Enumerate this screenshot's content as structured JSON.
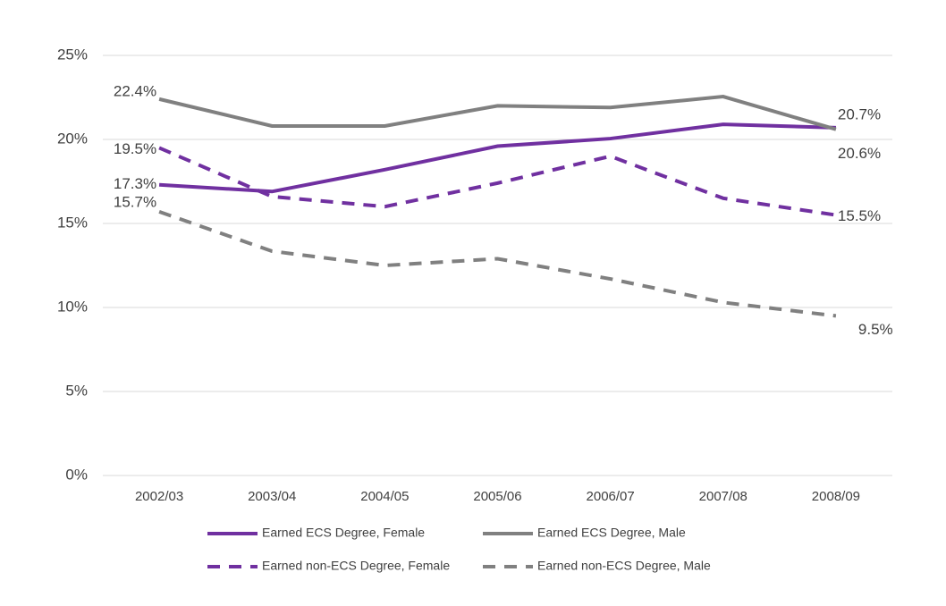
{
  "chart_data": {
    "type": "line",
    "categories": [
      "2002/03",
      "2003/04",
      "2004/05",
      "2005/06",
      "2006/07",
      "2007/08",
      "2008/09"
    ],
    "ylim": [
      0,
      25
    ],
    "yticks": [
      {
        "value": 0,
        "label": "0%"
      },
      {
        "value": 5,
        "label": "5%"
      },
      {
        "value": 10,
        "label": "10%"
      },
      {
        "value": 15,
        "label": "15%"
      },
      {
        "value": 20,
        "label": "20%"
      },
      {
        "value": 25,
        "label": "25%"
      }
    ],
    "grid": true,
    "legend": "bottom",
    "series": [
      {
        "name": "Earned ECS Degree, Female",
        "color": "#7030a0",
        "line_style": "solid",
        "values": [
          17.3,
          16.9,
          18.2,
          19.6,
          20.05,
          20.9,
          20.7
        ],
        "value_labels": [
          "17.3%",
          null,
          null,
          null,
          null,
          null,
          "20.7%"
        ]
      },
      {
        "name": "Earned ECS Degree, Male",
        "color": "#808080",
        "line_style": "solid",
        "values": [
          22.4,
          20.8,
          20.8,
          22.0,
          21.9,
          22.55,
          20.6
        ],
        "value_labels": [
          "22.4%",
          null,
          null,
          null,
          null,
          null,
          "20.6%"
        ]
      },
      {
        "name": "Earned non-ECS Degree, Female",
        "color": "#7030a0",
        "line_style": "dashed",
        "values": [
          19.5,
          16.6,
          16.0,
          17.4,
          19.0,
          16.5,
          15.5
        ],
        "value_labels": [
          "19.5%",
          null,
          null,
          null,
          null,
          null,
          "15.5%"
        ]
      },
      {
        "name": "Earned non-ECS Degree, Male",
        "color": "#808080",
        "line_style": "dashed",
        "values": [
          15.7,
          13.35,
          12.5,
          12.9,
          11.7,
          10.3,
          9.5
        ],
        "value_labels": [
          "15.7%",
          null,
          null,
          null,
          null,
          null,
          "9.5%"
        ]
      }
    ]
  }
}
